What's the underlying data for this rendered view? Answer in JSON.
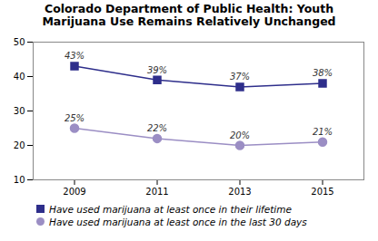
{
  "chart_data": {
    "type": "line",
    "title": "Colorado Department of Public Health: Youth\nMarijuana Use Remains Relatively Unchanged",
    "x": [
      2009,
      2011,
      2013,
      2015
    ],
    "xlim": [
      2008,
      2016
    ],
    "xticks": [
      2009,
      2011,
      2013,
      2015
    ],
    "ylim": [
      10,
      50
    ],
    "yticks": [
      10,
      20,
      30,
      40,
      50
    ],
    "grid": false,
    "legend": "lower left",
    "data_labels": true,
    "series": [
      {
        "name": "Have used marijuana at least once in their lifetime",
        "color": "#2e2e8b",
        "marker": "square",
        "values": [
          43,
          39,
          37,
          38
        ],
        "value_labels": [
          "43%",
          "39%",
          "37%",
          "38%"
        ]
      },
      {
        "name": "Have used marijuana at least once in the last 30 days",
        "color": "#9b8ec4",
        "marker": "circle",
        "values": [
          25,
          22,
          20,
          21
        ],
        "value_labels": [
          "25%",
          "22%",
          "20%",
          "21%"
        ]
      }
    ]
  }
}
